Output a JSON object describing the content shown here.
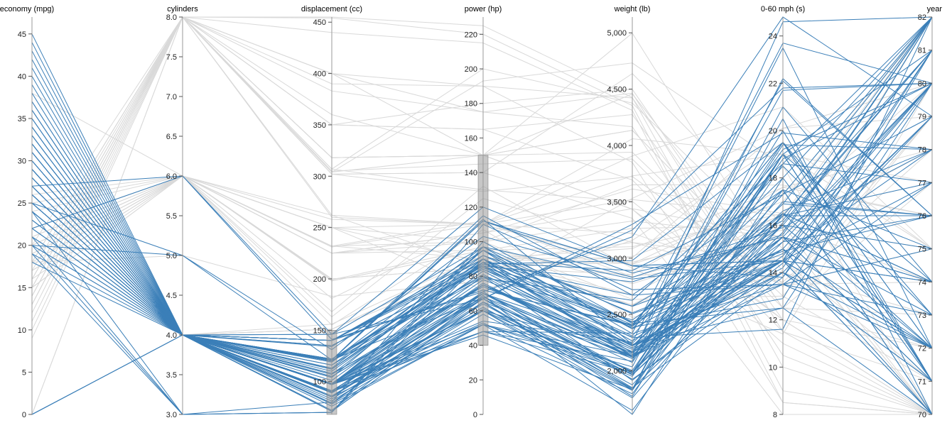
{
  "colors": {
    "selected": "#3b7fb8",
    "unselected": "#d9d9d9",
    "axis": "#999999",
    "brush": "#999999"
  },
  "chart_data": {
    "type": "parallel-coordinates",
    "title": "",
    "dimensions": [
      {
        "key": "economy",
        "label": "economy (mpg)",
        "min": 0,
        "max": 47,
        "ticks": [
          0,
          5,
          10,
          15,
          20,
          25,
          30,
          35,
          40,
          45
        ],
        "tick_labels": [
          "0",
          "5",
          "10",
          "15",
          "20",
          "25",
          "30",
          "35",
          "40",
          "45"
        ]
      },
      {
        "key": "cylinders",
        "label": "cylinders",
        "min": 3,
        "max": 8,
        "ticks": [
          3,
          3.5,
          4,
          4.5,
          5,
          5.5,
          6,
          6.5,
          7,
          7.5,
          8
        ],
        "tick_labels": [
          "3.0",
          "3.5",
          "4.0",
          "4.5",
          "5.0",
          "5.5",
          "6.0",
          "6.5",
          "7.0",
          "7.5",
          "8.0"
        ]
      },
      {
        "key": "displacement",
        "label": "displacement (cc)",
        "min": 68,
        "max": 455,
        "ticks": [
          100,
          150,
          200,
          250,
          300,
          350,
          400,
          450
        ],
        "tick_labels": [
          "100",
          "150",
          "200",
          "250",
          "300",
          "350",
          "400",
          "450"
        ]
      },
      {
        "key": "power",
        "label": "power (hp)",
        "min": 0,
        "max": 230,
        "ticks": [
          0,
          20,
          40,
          60,
          80,
          100,
          120,
          140,
          160,
          180,
          200,
          220
        ],
        "tick_labels": [
          "0",
          "20",
          "40",
          "60",
          "80",
          "100",
          "120",
          "140",
          "160",
          "180",
          "200",
          "220"
        ]
      },
      {
        "key": "weight",
        "label": "weight (lb)",
        "min": 1613,
        "max": 5140,
        "ticks": [
          2000,
          2500,
          3000,
          3500,
          4000,
          4500,
          5000
        ],
        "tick_labels": [
          "2,000",
          "2,500",
          "3,000",
          "3,500",
          "4,000",
          "4,500",
          "5,000"
        ]
      },
      {
        "key": "acceleration",
        "label": "0-60 mph (s)",
        "min": 8,
        "max": 24.8,
        "ticks": [
          8,
          10,
          12,
          14,
          16,
          18,
          20,
          22,
          24
        ],
        "tick_labels": [
          "8",
          "10",
          "12",
          "14",
          "16",
          "18",
          "20",
          "22",
          "24"
        ]
      },
      {
        "key": "year",
        "label": "year",
        "min": 70,
        "max": 82,
        "ticks": [
          70,
          71,
          72,
          73,
          74,
          75,
          76,
          77,
          78,
          79,
          80,
          81,
          82
        ],
        "tick_labels": [
          "70",
          "71",
          "72",
          "73",
          "74",
          "75",
          "76",
          "77",
          "78",
          "79",
          "80",
          "81",
          "82"
        ]
      }
    ],
    "brushes": [
      {
        "dimension": "displacement",
        "range": [
          68,
          150
        ]
      },
      {
        "dimension": "power",
        "range": [
          40,
          150
        ]
      }
    ],
    "records": [
      [
        18,
        8,
        307,
        130,
        3504,
        12,
        70
      ],
      [
        15,
        8,
        350,
        165,
        3693,
        11.5,
        70
      ],
      [
        18,
        8,
        318,
        150,
        3436,
        11,
        70
      ],
      [
        16,
        8,
        304,
        150,
        3433,
        12,
        70
      ],
      [
        14,
        8,
        454,
        220,
        4354,
        9,
        70
      ],
      [
        14,
        8,
        440,
        215,
        4312,
        8.5,
        70
      ],
      [
        14,
        8,
        455,
        225,
        4425,
        10,
        70
      ],
      [
        15,
        8,
        390,
        190,
        3850,
        8.5,
        70
      ],
      [
        24,
        4,
        113,
        95,
        2372,
        15,
        70
      ],
      [
        22,
        6,
        198,
        95,
        2833,
        15.5,
        70
      ],
      [
        18,
        6,
        199,
        97,
        2774,
        15.5,
        70
      ],
      [
        21,
        6,
        200,
        85,
        2587,
        16,
        70
      ],
      [
        27,
        4,
        97,
        88,
        2130,
        14.5,
        70
      ],
      [
        26,
        4,
        97,
        46,
        1835,
        20.5,
        70
      ],
      [
        25,
        4,
        110,
        87,
        2672,
        17.5,
        70
      ],
      [
        24,
        4,
        107,
        90,
        2430,
        14.5,
        70
      ],
      [
        25,
        4,
        104,
        95,
        2375,
        17.5,
        70
      ],
      [
        26,
        4,
        121,
        113,
        2234,
        12.5,
        70
      ],
      [
        10,
        8,
        307,
        200,
        4376,
        15,
        70
      ],
      [
        9,
        8,
        304,
        193,
        4732,
        18.5,
        70
      ],
      [
        27,
        4,
        97,
        60,
        1834,
        19,
        71
      ],
      [
        28,
        4,
        140,
        90,
        2264,
        15.5,
        71
      ],
      [
        25,
        4,
        113,
        95,
        2228,
        14,
        71
      ],
      [
        19,
        6,
        232,
        100,
        2634,
        13,
        71
      ],
      [
        16,
        6,
        225,
        105,
        3439,
        15.5,
        71
      ],
      [
        17,
        6,
        250,
        100,
        3329,
        15.5,
        71
      ],
      [
        14,
        8,
        400,
        175,
        4464,
        11.5,
        71
      ],
      [
        30,
        4,
        79,
        70,
        2074,
        19.5,
        71
      ],
      [
        31,
        4,
        71,
        65,
        1773,
        19,
        71
      ],
      [
        35,
        4,
        72,
        69,
        1613,
        18,
        71
      ],
      [
        22,
        4,
        140,
        72,
        2408,
        19,
        71
      ],
      [
        23,
        4,
        122,
        86,
        2220,
        14,
        71
      ],
      [
        13,
        8,
        350,
        165,
        4274,
        12,
        72
      ],
      [
        28,
        4,
        116,
        90,
        2123,
        14,
        72
      ],
      [
        24,
        4,
        121,
        112,
        2933,
        14.5,
        72
      ],
      [
        19,
        3,
        70,
        97,
        2330,
        13.5,
        72
      ],
      [
        26,
        4,
        122,
        80,
        2451,
        16.5,
        72
      ],
      [
        21,
        4,
        120,
        87,
        2979,
        19.5,
        72
      ],
      [
        20,
        4,
        140,
        90,
        2408,
        19.5,
        72
      ],
      [
        15,
        8,
        318,
        150,
        4135,
        13.5,
        72
      ],
      [
        13,
        8,
        400,
        190,
        4422,
        12.5,
        72
      ],
      [
        24,
        4,
        98,
        80,
        2164,
        15,
        72
      ],
      [
        22,
        6,
        232,
        112,
        2835,
        14.7,
        82
      ],
      [
        18,
        4,
        121,
        112,
        2933,
        14.5,
        72
      ],
      [
        11,
        8,
        400,
        150,
        4997,
        14,
        73
      ],
      [
        12,
        8,
        350,
        180,
        4499,
        12.5,
        73
      ],
      [
        29,
        4,
        98,
        83,
        2219,
        16.5,
        74
      ],
      [
        20,
        6,
        198,
        95,
        3102,
        16.5,
        74
      ],
      [
        26,
        4,
        97,
        78,
        2300,
        14.5,
        74
      ],
      [
        28,
        4,
        90,
        75,
        2125,
        14.5,
        74
      ],
      [
        31,
        4,
        76,
        52,
        1649,
        16.5,
        74
      ],
      [
        24,
        4,
        90,
        75,
        2108,
        15.5,
        74
      ],
      [
        13,
        8,
        302,
        140,
        4638,
        16,
        74
      ],
      [
        14,
        8,
        318,
        150,
        4457,
        13.5,
        74
      ],
      [
        22,
        4,
        122,
        86,
        2395,
        16,
        72
      ],
      [
        20,
        4,
        122,
        85,
        2310,
        18.5,
        73
      ],
      [
        23,
        4,
        97,
        54,
        2254,
        23.5,
        72
      ],
      [
        19,
        4,
        121,
        112,
        2868,
        15.5,
        73
      ],
      [
        18,
        6,
        225,
        105,
        3613,
        16.5,
        74
      ],
      [
        15,
        6,
        250,
        72,
        3158,
        19.5,
        75
      ],
      [
        24,
        4,
        98,
        60,
        2164,
        22.1,
        76
      ],
      [
        29,
        4,
        97,
        75,
        2171,
        16,
        75
      ],
      [
        25,
        4,
        140,
        92,
        2572,
        14.9,
        76
      ],
      [
        33,
        4,
        91,
        53,
        1795,
        17.5,
        75
      ],
      [
        17,
        6,
        231,
        110,
        3907,
        21,
        75
      ],
      [
        16,
        8,
        302,
        129,
        3725,
        13.4,
        79
      ],
      [
        20,
        6,
        225,
        100,
        3651,
        17.7,
        76
      ],
      [
        30,
        4,
        97,
        67,
        1985,
        16.4,
        77
      ],
      [
        25,
        4,
        116,
        81,
        2220,
        16.9,
        76
      ],
      [
        36,
        4,
        79,
        58,
        1825,
        18.6,
        77
      ],
      [
        19,
        6,
        225,
        95,
        3264,
        16,
        75
      ],
      [
        28,
        4,
        97,
        75,
        2155,
        16.4,
        76
      ],
      [
        29,
        4,
        85,
        52,
        2035,
        22.2,
        76
      ],
      [
        32,
        4,
        85,
        70,
        1990,
        17,
        76
      ],
      [
        23,
        4,
        151,
        85,
        2855,
        17.6,
        78
      ],
      [
        27,
        4,
        151,
        90,
        2950,
        17.3,
        82
      ],
      [
        34,
        4,
        91,
        68,
        1985,
        16,
        81
      ],
      [
        40,
        4,
        85,
        65,
        2110,
        19.2,
        80
      ],
      [
        44,
        4,
        97,
        52,
        2130,
        24.6,
        82
      ],
      [
        37,
        4,
        119,
        92,
        2434,
        15,
        80
      ],
      [
        32,
        4,
        135,
        84,
        2295,
        11.6,
        82
      ],
      [
        27,
        4,
        140,
        86,
        2790,
        15.6,
        82
      ],
      [
        31,
        4,
        112,
        85,
        2575,
        16.2,
        82
      ],
      [
        38,
        4,
        91,
        67,
        1965,
        15.7,
        82
      ],
      [
        36,
        4,
        120,
        88,
        2160,
        14.5,
        82
      ],
      [
        28,
        4,
        120,
        79,
        2625,
        18.6,
        82
      ],
      [
        33,
        4,
        105,
        74,
        2190,
        14.2,
        81
      ],
      [
        39,
        4,
        86,
        64,
        1875,
        16.4,
        81
      ],
      [
        35,
        4,
        81,
        60,
        1760,
        16.1,
        81
      ],
      [
        31,
        4,
        89,
        71,
        1925,
        14,
        79
      ],
      [
        43,
        4,
        90,
        48,
        2335,
        23.7,
        80
      ],
      [
        26,
        4,
        156,
        92,
        2585,
        14.5,
        82
      ],
      [
        24,
        4,
        140,
        88,
        2890,
        17.3,
        79
      ],
      [
        30,
        4,
        135,
        84,
        2385,
        12.9,
        81
      ],
      [
        27,
        6,
        141,
        71,
        3190,
        24.8,
        79
      ],
      [
        22,
        4,
        146,
        97,
        2815,
        14.5,
        77
      ],
      [
        21,
        6,
        155,
        107,
        2472,
        14,
        73
      ],
      [
        32,
        4,
        98,
        70,
        2120,
        15.5,
        80
      ],
      [
        35,
        4,
        98,
        80,
        1915,
        14.4,
        79
      ],
      [
        20,
        6,
        200,
        85,
        2965,
        15.8,
        78
      ],
      [
        29,
        4,
        98,
        68,
        2135,
        16.6,
        78
      ],
      [
        25,
        5,
        131,
        103,
        2830,
        15.9,
        78
      ],
      [
        45,
        4,
        90,
        48,
        2085,
        21.7,
        80
      ],
      [
        33,
        4,
        105,
        75,
        2230,
        14.5,
        79
      ],
      [
        26,
        6,
        168,
        132,
        2910,
        11.4,
        80
      ],
      [
        30,
        4,
        146,
        67,
        3250,
        21.8,
        80
      ],
      [
        36,
        4,
        107,
        75,
        2205,
        14.5,
        82
      ],
      [
        34,
        4,
        108,
        70,
        2245,
        16.9,
        82
      ],
      [
        20,
        5,
        121,
        67,
        3300,
        19.9,
        78
      ],
      [
        22,
        6,
        146,
        120,
        2930,
        13.8,
        81
      ],
      [
        18,
        5,
        183,
        77,
        3530,
        20.1,
        79
      ],
      [
        24,
        6,
        163,
        125,
        3140,
        13.6,
        78
      ],
      [
        29,
        4,
        89,
        62,
        1845,
        15.3,
        80
      ],
      [
        41,
        4,
        98,
        76,
        2144,
        14.7,
        80
      ],
      [
        23,
        4,
        151,
        90,
        3003,
        20.1,
        80
      ],
      [
        26,
        4,
        134,
        95,
        2515,
        14.8,
        78
      ],
      [
        28,
        4,
        151,
        90,
        2678,
        16.5,
        80
      ],
      [
        34,
        4,
        112,
        88,
        2395,
        18,
        82
      ],
      [
        27,
        4,
        97,
        60,
        1950,
        19,
        81
      ],
      [
        17,
        6,
        250,
        110,
        3520,
        16.4,
        77
      ],
      [
        16,
        8,
        260,
        110,
        4060,
        19,
        77
      ],
      [
        38,
        6,
        262,
        85,
        3015,
        17,
        82
      ],
      [
        19,
        6,
        232,
        90,
        3085,
        17.6,
        76
      ],
      [
        15,
        6,
        258,
        110,
        3730,
        19,
        75
      ],
      [
        18,
        6,
        250,
        88,
        3139,
        14.5,
        71
      ],
      [
        25,
        6,
        181,
        110,
        2945,
        16.4,
        82
      ],
      [
        20,
        8,
        262,
        110,
        3221,
        13.5,
        75
      ],
      [
        13,
        8,
        360,
        150,
        3940,
        13,
        79
      ],
      [
        17,
        8,
        305,
        145,
        3880,
        12.5,
        77
      ],
      [
        18,
        8,
        318,
        150,
        4135,
        13.5,
        72
      ],
      [
        24,
        3,
        70,
        90,
        2124,
        13.5,
        73
      ],
      [
        20,
        3,
        70,
        100,
        2420,
        12.5,
        80
      ],
      [
        21,
        3,
        80,
        110,
        2720,
        13.5,
        77
      ],
      [
        27,
        4,
        101,
        83,
        2202,
        15.3,
        76
      ],
      [
        26,
        4,
        79,
        67,
        1963,
        15.5,
        74
      ],
      [
        23,
        4,
        120,
        97,
        2506,
        14.5,
        72
      ],
      [
        32,
        4,
        71,
        65,
        1836,
        21,
        74
      ],
      [
        31,
        4,
        78,
        52,
        1985,
        19.4,
        78
      ],
      [
        37,
        4,
        89,
        60,
        1968,
        18.8,
        80
      ],
      [
        29,
        4,
        83,
        61,
        2003,
        19,
        74
      ],
      [
        21,
        4,
        140,
        72,
        2401,
        19.5,
        73
      ],
      [
        0,
        4,
        97,
        48,
        1978,
        20,
        71
      ],
      [
        0,
        4,
        140,
        90,
        2264,
        15.5,
        71
      ],
      [
        0,
        8,
        383,
        175,
        4166,
        10.5,
        70
      ],
      [
        0,
        8,
        302,
        140,
        3353,
        8,
        70
      ],
      [
        0,
        4,
        121,
        115,
        2671,
        13.5,
        75
      ],
      [
        32,
        4,
        91,
        67,
        1850,
        13.8,
        80
      ],
      [
        42,
        4,
        98,
        70,
        2125,
        17.3,
        82
      ]
    ]
  }
}
